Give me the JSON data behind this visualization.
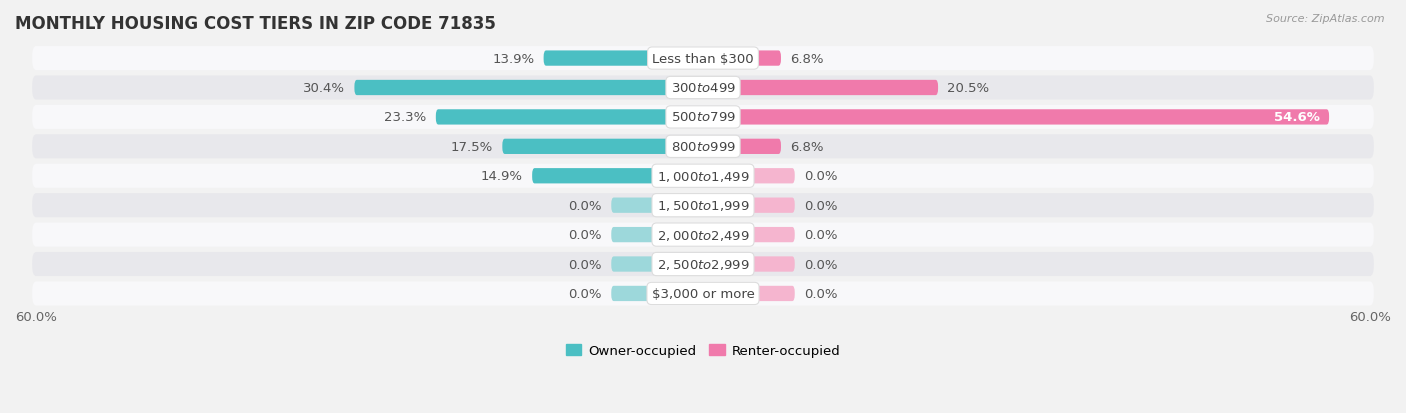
{
  "title": "MONTHLY HOUSING COST TIERS IN ZIP CODE 71835",
  "source": "Source: ZipAtlas.com",
  "categories": [
    "Less than $300",
    "$300 to $499",
    "$500 to $799",
    "$800 to $999",
    "$1,000 to $1,499",
    "$1,500 to $1,999",
    "$2,000 to $2,499",
    "$2,500 to $2,999",
    "$3,000 or more"
  ],
  "owner_values": [
    13.9,
    30.4,
    23.3,
    17.5,
    14.9,
    0.0,
    0.0,
    0.0,
    0.0
  ],
  "renter_values": [
    6.8,
    20.5,
    54.6,
    6.8,
    0.0,
    0.0,
    0.0,
    0.0,
    0.0
  ],
  "owner_color": "#4bbfc3",
  "renter_color": "#f07aab",
  "owner_color_zero": "#9dd8db",
  "renter_color_zero": "#f5b5cf",
  "axis_limit": 60.0,
  "background_color": "#f2f2f2",
  "row_color_odd": "#e8e8ec",
  "row_color_even": "#f8f8fa",
  "label_fontsize": 9.5,
  "title_fontsize": 12,
  "bar_height": 0.52,
  "zero_bar_width": 8.0,
  "owner_label": "Owner-occupied",
  "renter_label": "Renter-occupied"
}
